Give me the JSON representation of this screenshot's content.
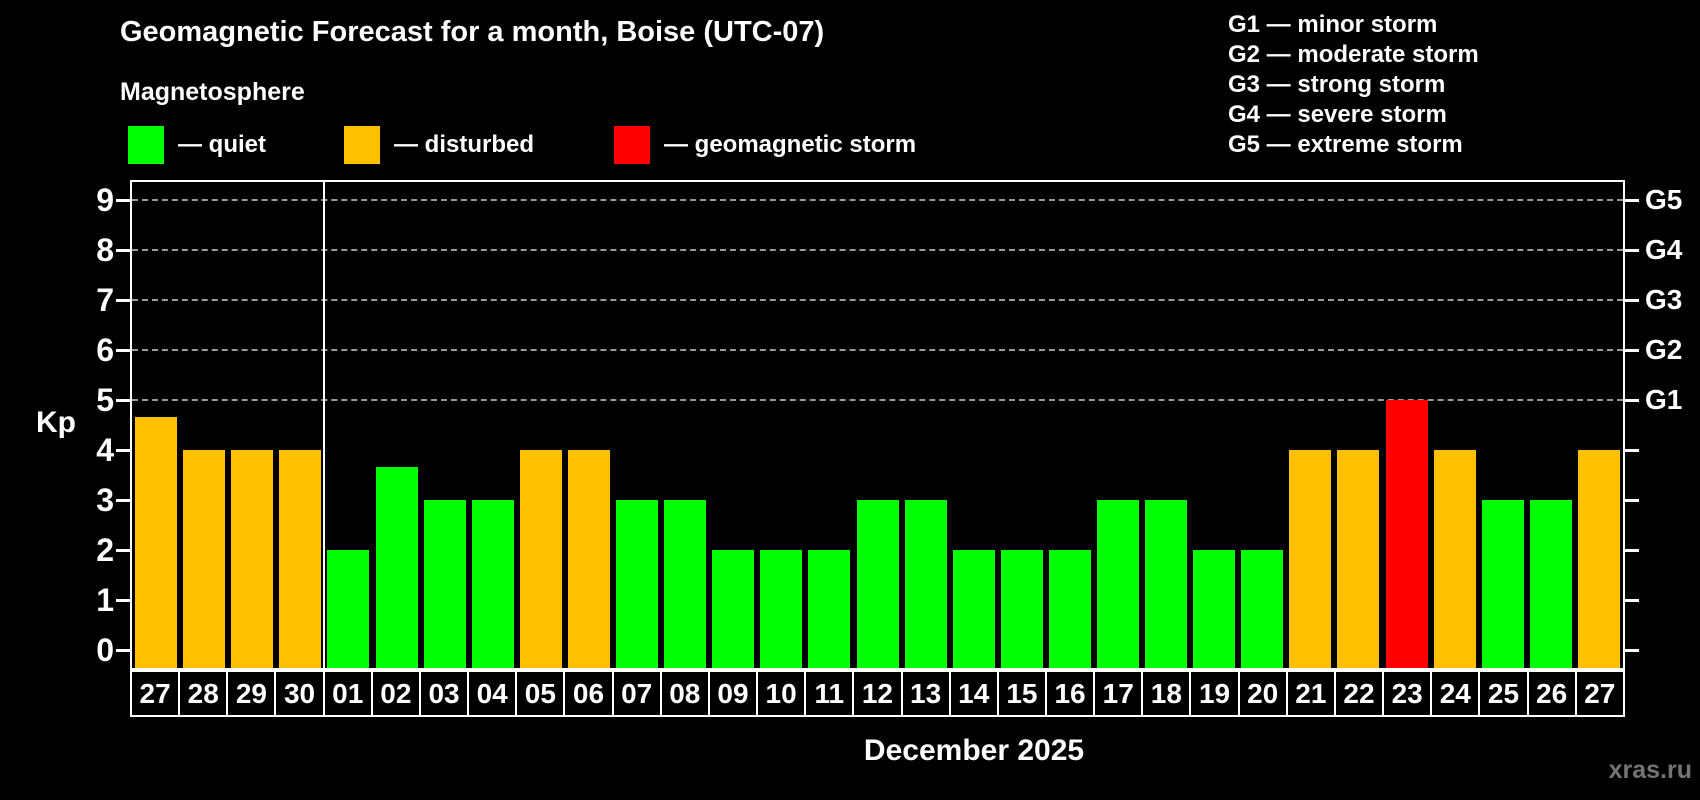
{
  "header": {
    "title": "Geomagnetic Forecast for a month, Boise (UTC-07)",
    "subtitle": "Magnetosphere"
  },
  "legend": {
    "items": [
      {
        "key": "quiet",
        "label": "— quiet"
      },
      {
        "key": "disturbed",
        "label": "— disturbed"
      },
      {
        "key": "storm",
        "label": "— geomagnetic storm"
      }
    ]
  },
  "storm_scale": [
    "G1 — minor storm",
    "G2 — moderate storm",
    "G3 — strong storm",
    "G4 — severe storm",
    "G5 — extreme storm"
  ],
  "chart_data": {
    "type": "bar",
    "title": "Geomagnetic Forecast for a month, Boise (UTC-07)",
    "ylabel": "Kp",
    "xlabel": "December 2025",
    "ylim": [
      0,
      9
    ],
    "yticks": [
      0,
      1,
      2,
      3,
      4,
      5,
      6,
      7,
      8,
      9
    ],
    "gridline_levels": [
      5,
      6,
      7,
      8,
      9
    ],
    "grid": "dashed-horizontal",
    "legend_position": "top-left",
    "right_axis_labels": [
      {
        "level": 5,
        "label": "G1"
      },
      {
        "level": 6,
        "label": "G2"
      },
      {
        "level": 7,
        "label": "G3"
      },
      {
        "level": 8,
        "label": "G4"
      },
      {
        "level": 9,
        "label": "G5"
      }
    ],
    "month_separator_after": 4,
    "status_colors": {
      "quiet": "#00ff00",
      "disturbed": "#ffc000",
      "storm": "#ff0000"
    },
    "points": [
      {
        "day": "27",
        "kp": 4.67,
        "status": "disturbed"
      },
      {
        "day": "28",
        "kp": 4,
        "status": "disturbed"
      },
      {
        "day": "29",
        "kp": 4,
        "status": "disturbed"
      },
      {
        "day": "30",
        "kp": 4,
        "status": "disturbed"
      },
      {
        "day": "01",
        "kp": 2,
        "status": "quiet"
      },
      {
        "day": "02",
        "kp": 3.67,
        "status": "quiet"
      },
      {
        "day": "03",
        "kp": 3,
        "status": "quiet"
      },
      {
        "day": "04",
        "kp": 3,
        "status": "quiet"
      },
      {
        "day": "05",
        "kp": 4,
        "status": "disturbed"
      },
      {
        "day": "06",
        "kp": 4,
        "status": "disturbed"
      },
      {
        "day": "07",
        "kp": 3,
        "status": "quiet"
      },
      {
        "day": "08",
        "kp": 3,
        "status": "quiet"
      },
      {
        "day": "09",
        "kp": 2,
        "status": "quiet"
      },
      {
        "day": "10",
        "kp": 2,
        "status": "quiet"
      },
      {
        "day": "11",
        "kp": 2,
        "status": "quiet"
      },
      {
        "day": "12",
        "kp": 3,
        "status": "quiet"
      },
      {
        "day": "13",
        "kp": 3,
        "status": "quiet"
      },
      {
        "day": "14",
        "kp": 2,
        "status": "quiet"
      },
      {
        "day": "15",
        "kp": 2,
        "status": "quiet"
      },
      {
        "day": "16",
        "kp": 2,
        "status": "quiet"
      },
      {
        "day": "17",
        "kp": 3,
        "status": "quiet"
      },
      {
        "day": "18",
        "kp": 3,
        "status": "quiet"
      },
      {
        "day": "19",
        "kp": 2,
        "status": "quiet"
      },
      {
        "day": "20",
        "kp": 2,
        "status": "quiet"
      },
      {
        "day": "21",
        "kp": 4,
        "status": "disturbed"
      },
      {
        "day": "22",
        "kp": 4,
        "status": "disturbed"
      },
      {
        "day": "23",
        "kp": 5,
        "status": "storm"
      },
      {
        "day": "24",
        "kp": 4,
        "status": "disturbed"
      },
      {
        "day": "25",
        "kp": 3,
        "status": "quiet"
      },
      {
        "day": "26",
        "kp": 3,
        "status": "quiet"
      },
      {
        "day": "27",
        "kp": 4,
        "status": "disturbed"
      }
    ]
  },
  "footer": {
    "month_label": "December 2025",
    "watermark": "xras.ru"
  }
}
